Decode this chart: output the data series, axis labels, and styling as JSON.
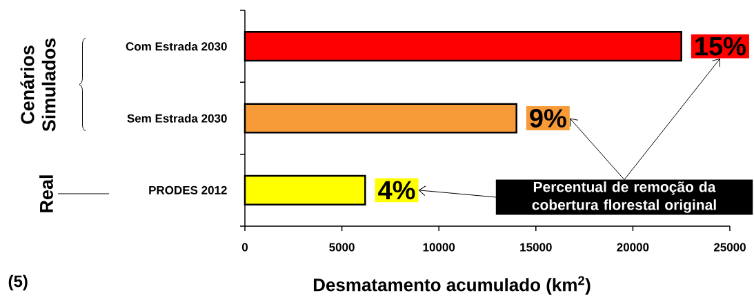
{
  "chart_data": {
    "type": "bar",
    "orientation": "horizontal",
    "categories": [
      "Com Estrada 2030",
      "Sem Estrada 2030",
      "PRODES 2012"
    ],
    "values": [
      22500,
      14000,
      6200
    ],
    "colors": [
      "#ff0000",
      "#f79a38",
      "#ffff00"
    ],
    "xlabel": "Desmatamento acumulado (km$^{2}$)",
    "xlim": [
      0,
      25000
    ],
    "xticks": [
      0,
      5000,
      10000,
      15000,
      20000,
      25000
    ],
    "annotations": [
      {
        "text": "15%",
        "x": 22500,
        "y": "Com Estrada 2030"
      },
      {
        "text": "9%",
        "x": 14000,
        "y": "Sem Estrada 2030"
      },
      {
        "text": "4%",
        "x": 6200,
        "y": "PRODES 2012"
      },
      "Cenários Simulados",
      "Real",
      "Percentual de remoção da cobertura florestal original",
      "(5)"
    ]
  }
}
